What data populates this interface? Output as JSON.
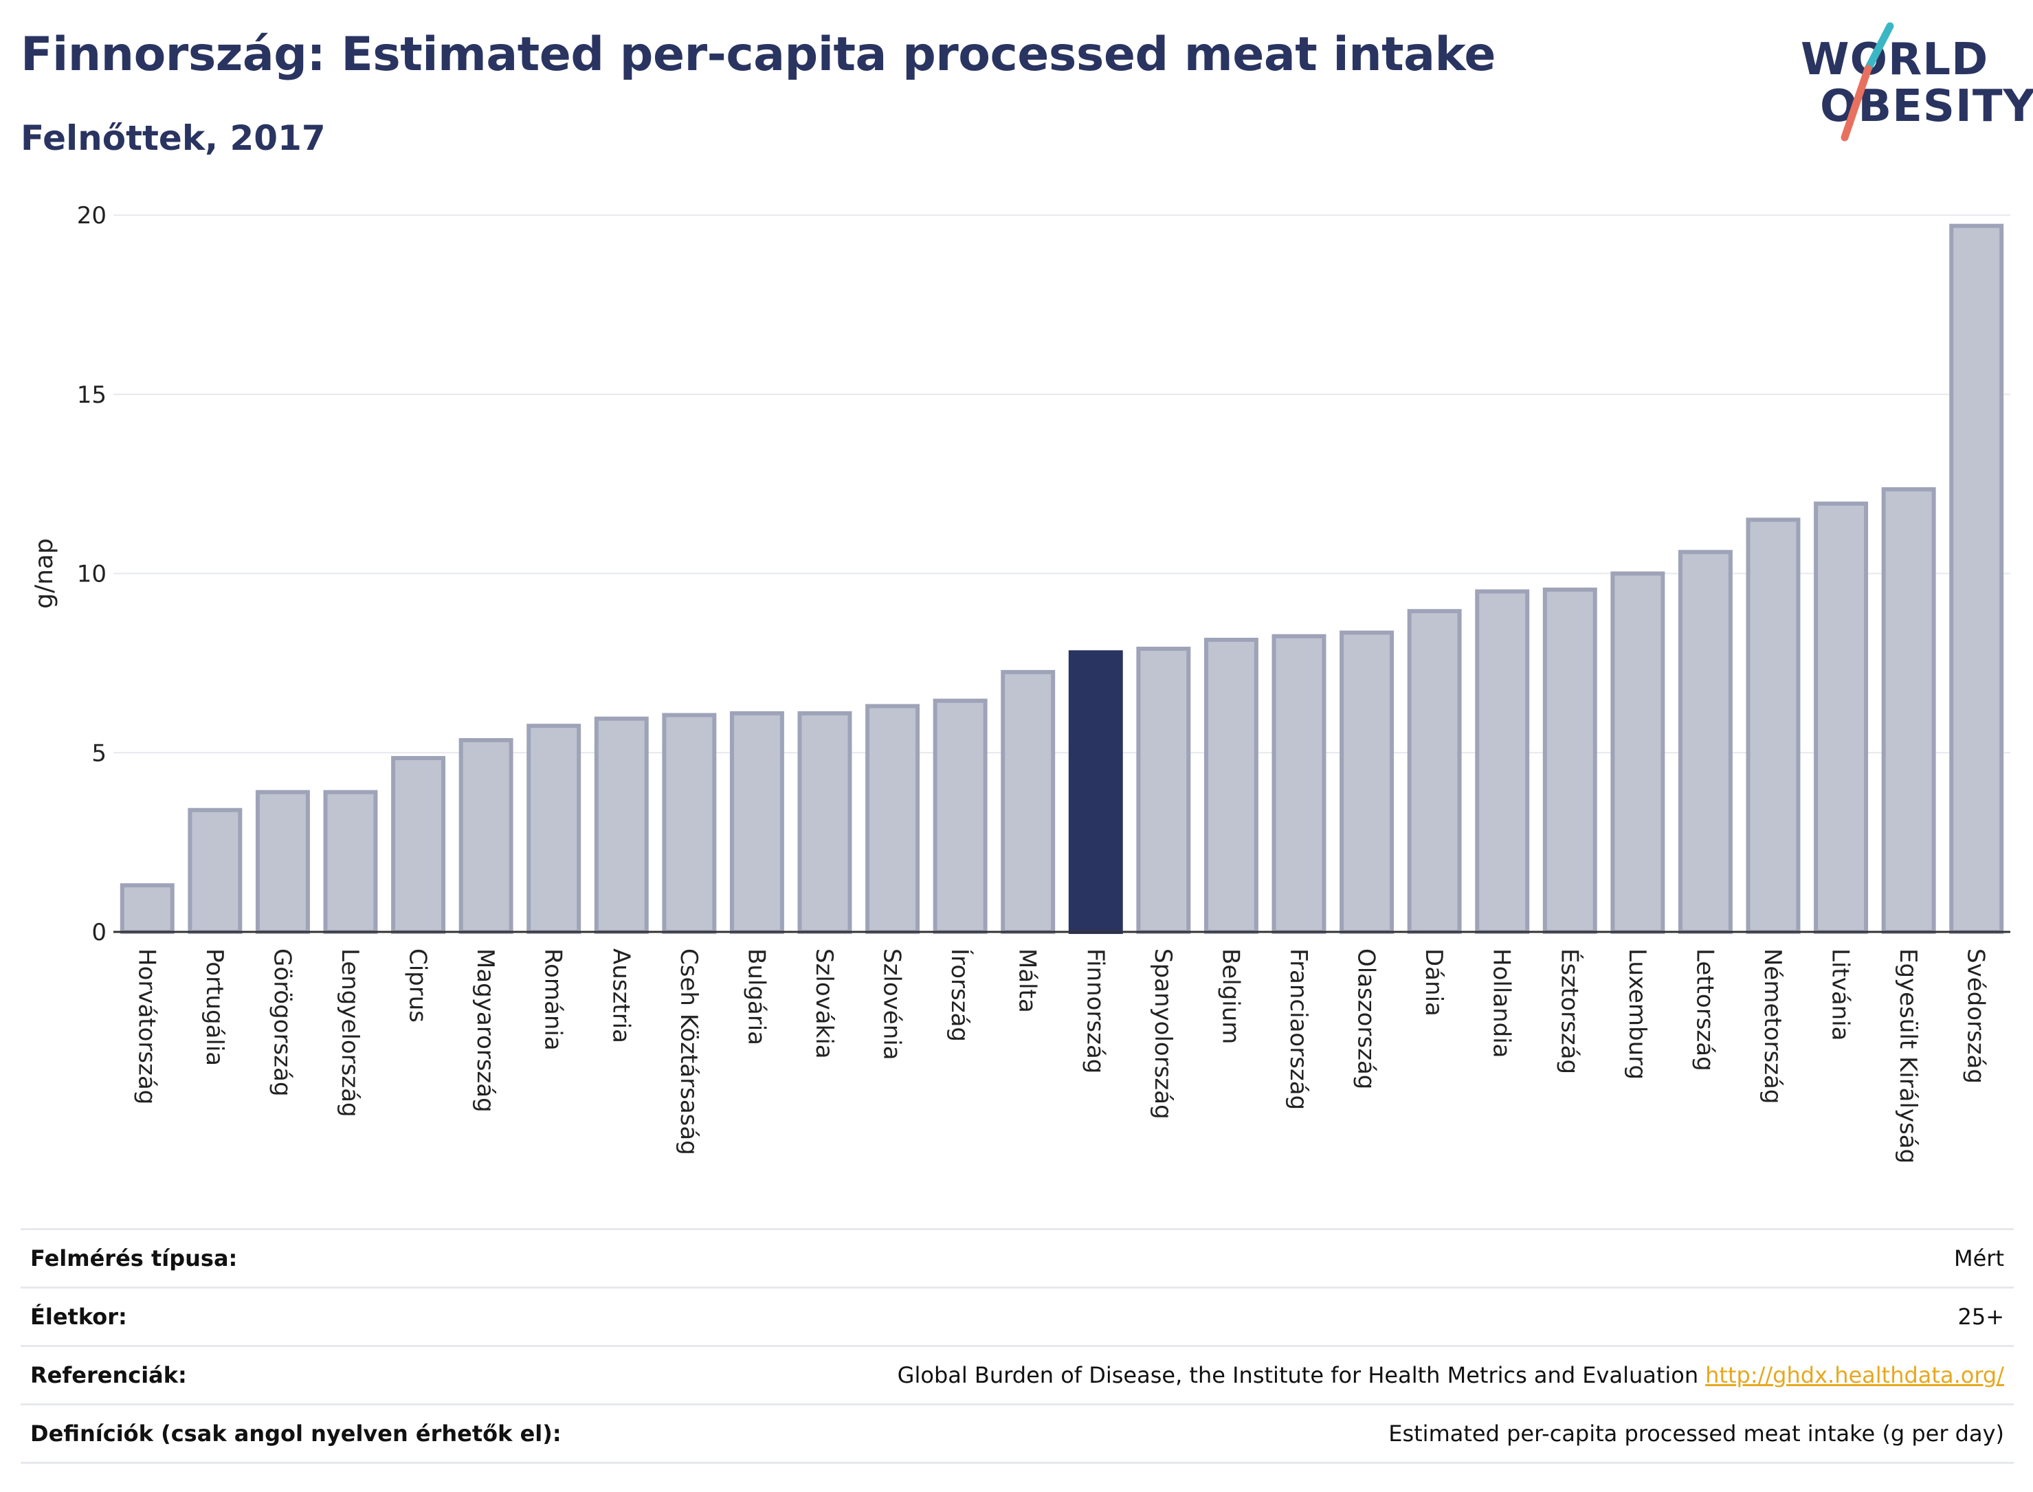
{
  "header": {
    "title": "Finnország: Estimated per-capita processed meat intake",
    "subtitle": "Felnőttek, 2017"
  },
  "logo": {
    "line1": "WORLD",
    "line2": "OBESITY",
    "colors": {
      "text": "#2a3461",
      "slash_top": "#3bb6c4",
      "slash_bottom": "#e8705f"
    }
  },
  "chart_data": {
    "type": "bar",
    "ylabel": "g/nap",
    "ylim": [
      0,
      20
    ],
    "yticks": [
      0,
      5,
      10,
      15,
      20
    ],
    "grid": true,
    "highlight": "Finnország",
    "colors": {
      "bar": "#c0c3d0",
      "bar_edge": "#9ea3b8",
      "highlight": "#2a3461",
      "grid": "#e6e8ee"
    },
    "categories": [
      "Horvátország",
      "Portugália",
      "Görögország",
      "Lengyelország",
      "Ciprus",
      "Magyarország",
      "Románia",
      "Ausztria",
      "Cseh Köztársaság",
      "Bulgária",
      "Szlovákia",
      "Szlovénia",
      "Írország",
      "Málta",
      "Finnország",
      "Spanyolország",
      "Belgium",
      "Franciaország",
      "Olaszország",
      "Dánia",
      "Hollandia",
      "Észtország",
      "Luxemburg",
      "Lettország",
      "Németország",
      "Litvánia",
      "Egyesült Királyság",
      "Svédország"
    ],
    "values": [
      1.3,
      3.4,
      3.9,
      3.9,
      4.85,
      5.35,
      5.75,
      5.95,
      6.05,
      6.1,
      6.1,
      6.3,
      6.45,
      7.25,
      7.8,
      7.9,
      8.15,
      8.25,
      8.35,
      8.95,
      9.5,
      9.55,
      10.0,
      10.6,
      11.5,
      11.95,
      12.35,
      19.7
    ]
  },
  "meta": {
    "rows": [
      {
        "label": "Felmérés típusa:",
        "value": "Mért"
      },
      {
        "label": "Életkor:",
        "value": "25+"
      },
      {
        "label": "Referenciák:",
        "value": "Global Burden of Disease, the Institute for Health Metrics and Evaluation",
        "link": "http://ghdx.healthdata.org/"
      },
      {
        "label": "Definíciók (csak angol nyelven érhetők el):",
        "value": "Estimated per-capita processed meat intake (g per day)"
      }
    ]
  }
}
